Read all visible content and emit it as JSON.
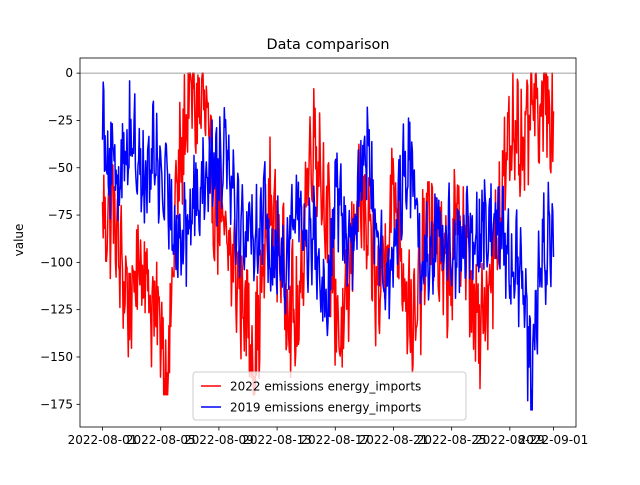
{
  "chart_data": {
    "type": "line",
    "title": "Data comparison",
    "xlabel": "",
    "ylabel": "value",
    "x_range": [
      "2022-08-01",
      "2022-09-01"
    ],
    "ylim": [
      -187,
      8
    ],
    "x_ticks": [
      "2022-08-01",
      "2022-08-05",
      "2022-08-09",
      "2022-08-13",
      "2022-08-17",
      "2022-08-21",
      "2022-08-25",
      "2022-08-29",
      "2022-09-01"
    ],
    "y_ticks": [
      0,
      -25,
      -50,
      -75,
      -100,
      -125,
      -150,
      -175
    ],
    "reference_line": 0,
    "grid": false,
    "legend_position": "lower-center",
    "series": [
      {
        "name": "2022 emissions energy_imports",
        "color": "#ff0000",
        "anchors": [
          [
            "2022-08-01",
            -80
          ],
          [
            "2022-08-01T18:00",
            -70
          ],
          [
            "2022-08-02",
            -90
          ],
          [
            "2022-08-02T12:00",
            -110
          ],
          [
            "2022-08-03",
            -125
          ],
          [
            "2022-08-03T12:00",
            -95
          ],
          [
            "2022-08-04",
            -105
          ],
          [
            "2022-08-04T12:00",
            -130
          ],
          [
            "2022-08-05",
            -130
          ],
          [
            "2022-08-05T08:00",
            -160
          ],
          [
            "2022-08-05T16:00",
            -140
          ],
          [
            "2022-08-06",
            -70
          ],
          [
            "2022-08-06T12:00",
            -40
          ],
          [
            "2022-08-07",
            -5
          ],
          [
            "2022-08-07T12:00",
            -20
          ],
          [
            "2022-08-08",
            -15
          ],
          [
            "2022-08-08T12:00",
            -60
          ],
          [
            "2022-08-09",
            -75
          ],
          [
            "2022-08-09T12:00",
            -95
          ],
          [
            "2022-08-10",
            -100
          ],
          [
            "2022-08-10T12:00",
            -115
          ],
          [
            "2022-08-11",
            -130
          ],
          [
            "2022-08-11T12:00",
            -150
          ],
          [
            "2022-08-12",
            -110
          ],
          [
            "2022-08-12T12:00",
            -70
          ],
          [
            "2022-08-13",
            -85
          ],
          [
            "2022-08-13T12:00",
            -110
          ],
          [
            "2022-08-14",
            -125
          ],
          [
            "2022-08-14T12:00",
            -135
          ],
          [
            "2022-08-15",
            -60
          ],
          [
            "2022-08-15T12:00",
            -30
          ],
          [
            "2022-08-16",
            -50
          ],
          [
            "2022-08-16T12:00",
            -80
          ],
          [
            "2022-08-17",
            -120
          ],
          [
            "2022-08-17T12:00",
            -145
          ],
          [
            "2022-08-18",
            -110
          ],
          [
            "2022-08-18T12:00",
            -60
          ],
          [
            "2022-08-19",
            -80
          ],
          [
            "2022-08-19T12:00",
            -100
          ],
          [
            "2022-08-20",
            -120
          ],
          [
            "2022-08-20T12:00",
            -85
          ],
          [
            "2022-08-21",
            -60
          ],
          [
            "2022-08-21T12:00",
            -90
          ],
          [
            "2022-08-22",
            -120
          ],
          [
            "2022-08-22T12:00",
            -140
          ],
          [
            "2022-08-23",
            -100
          ],
          [
            "2022-08-23T12:00",
            -75
          ],
          [
            "2022-08-24",
            -90
          ],
          [
            "2022-08-24T12:00",
            -110
          ],
          [
            "2022-08-25",
            -100
          ],
          [
            "2022-08-25T12:00",
            -70
          ],
          [
            "2022-08-26",
            -95
          ],
          [
            "2022-08-26T12:00",
            -125
          ],
          [
            "2022-08-27",
            -140
          ],
          [
            "2022-08-27T12:00",
            -110
          ],
          [
            "2022-08-28",
            -90
          ],
          [
            "2022-08-28T12:00",
            -60
          ],
          [
            "2022-08-29",
            -40
          ],
          [
            "2022-08-29T12:00",
            -20
          ],
          [
            "2022-08-30",
            -50
          ],
          [
            "2022-08-30T12:00",
            -10
          ],
          [
            "2022-08-31",
            -30
          ],
          [
            "2022-08-31T12:00",
            -5
          ],
          [
            "2022-09-01",
            -30
          ]
        ],
        "jitter": 28,
        "min": -170,
        "max": 0
      },
      {
        "name": "2019 emissions energy_imports",
        "color": "#0000ff",
        "anchors": [
          [
            "2022-08-01",
            -20
          ],
          [
            "2022-08-01T12:00",
            -50
          ],
          [
            "2022-08-02",
            -55
          ],
          [
            "2022-08-02T12:00",
            -40
          ],
          [
            "2022-08-03",
            -30
          ],
          [
            "2022-08-03T12:00",
            -50
          ],
          [
            "2022-08-04",
            -60
          ],
          [
            "2022-08-04T12:00",
            -40
          ],
          [
            "2022-08-05",
            -55
          ],
          [
            "2022-08-05T12:00",
            -70
          ],
          [
            "2022-08-06",
            -80
          ],
          [
            "2022-08-06T12:00",
            -90
          ],
          [
            "2022-08-07",
            -75
          ],
          [
            "2022-08-07T12:00",
            -60
          ],
          [
            "2022-08-08",
            -55
          ],
          [
            "2022-08-08T12:00",
            -45
          ],
          [
            "2022-08-09",
            -50
          ],
          [
            "2022-08-09T12:00",
            -30
          ],
          [
            "2022-08-10",
            -60
          ],
          [
            "2022-08-10T12:00",
            -85
          ],
          [
            "2022-08-11",
            -80
          ],
          [
            "2022-08-11T12:00",
            -85
          ],
          [
            "2022-08-12",
            -75
          ],
          [
            "2022-08-12T12:00",
            -90
          ],
          [
            "2022-08-13",
            -95
          ],
          [
            "2022-08-13T12:00",
            -100
          ],
          [
            "2022-08-14",
            -80
          ],
          [
            "2022-08-14T12:00",
            -70
          ],
          [
            "2022-08-15",
            -90
          ],
          [
            "2022-08-15T12:00",
            -80
          ],
          [
            "2022-08-16",
            -110
          ],
          [
            "2022-08-16T12:00",
            -130
          ],
          [
            "2022-08-17",
            -60
          ],
          [
            "2022-08-17T12:00",
            -80
          ],
          [
            "2022-08-18",
            -90
          ],
          [
            "2022-08-18T12:00",
            -70
          ],
          [
            "2022-08-19",
            -30
          ],
          [
            "2022-08-19T12:00",
            -60
          ],
          [
            "2022-08-20",
            -90
          ],
          [
            "2022-08-20T12:00",
            -110
          ],
          [
            "2022-08-21",
            -100
          ],
          [
            "2022-08-21T12:00",
            -60
          ],
          [
            "2022-08-22",
            -40
          ],
          [
            "2022-08-22T12:00",
            -70
          ],
          [
            "2022-08-23",
            -100
          ],
          [
            "2022-08-23T12:00",
            -90
          ],
          [
            "2022-08-24",
            -85
          ],
          [
            "2022-08-24T12:00",
            -90
          ],
          [
            "2022-08-25",
            -85
          ],
          [
            "2022-08-25T12:00",
            -95
          ],
          [
            "2022-08-26",
            -85
          ],
          [
            "2022-08-26T12:00",
            -90
          ],
          [
            "2022-08-27",
            -85
          ],
          [
            "2022-08-27T12:00",
            -80
          ],
          [
            "2022-08-28",
            -75
          ],
          [
            "2022-08-28T12:00",
            -90
          ],
          [
            "2022-08-29",
            -95
          ],
          [
            "2022-08-29T12:00",
            -105
          ],
          [
            "2022-08-30",
            -120
          ],
          [
            "2022-08-30T12:00",
            -165
          ],
          [
            "2022-08-31",
            -110
          ],
          [
            "2022-08-31T12:00",
            -90
          ],
          [
            "2022-09-01",
            -85
          ]
        ],
        "jitter": 24,
        "min": -178,
        "max": 0
      }
    ]
  }
}
